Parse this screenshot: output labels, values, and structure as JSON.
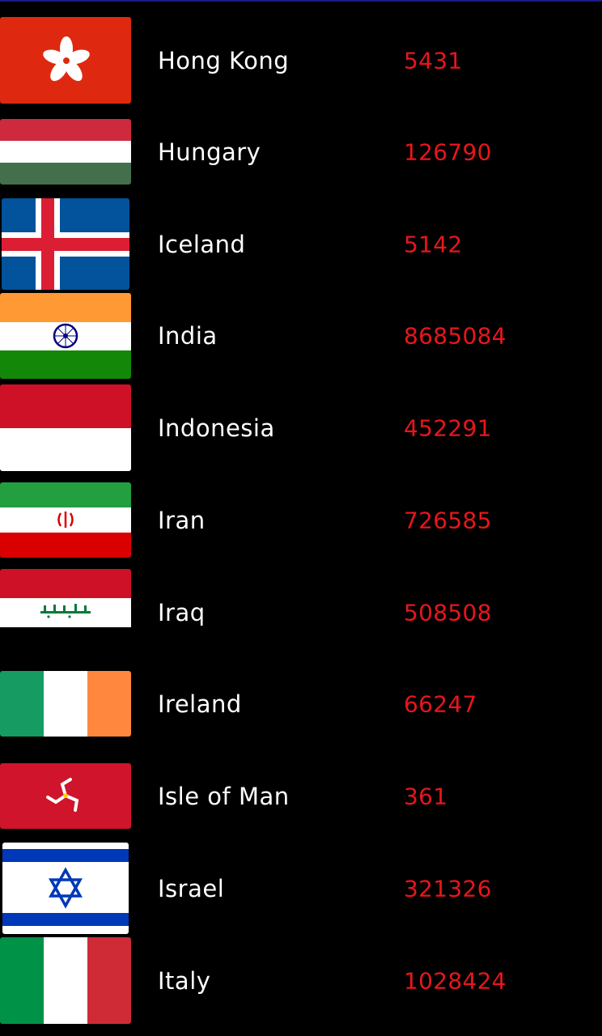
{
  "countries": [
    {
      "name": "Hong Kong",
      "count": "5431",
      "flag_icon": "hong-kong-flag-icon"
    },
    {
      "name": "Hungary",
      "count": "126790",
      "flag_icon": "hungary-flag-icon"
    },
    {
      "name": "Iceland",
      "count": "5142",
      "flag_icon": "iceland-flag-icon"
    },
    {
      "name": "India",
      "count": "8685084",
      "flag_icon": "india-flag-icon"
    },
    {
      "name": "Indonesia",
      "count": "452291",
      "flag_icon": "indonesia-flag-icon"
    },
    {
      "name": "Iran",
      "count": "726585",
      "flag_icon": "iran-flag-icon"
    },
    {
      "name": "Iraq",
      "count": "508508",
      "flag_icon": "iraq-flag-icon"
    },
    {
      "name": "Ireland",
      "count": "66247",
      "flag_icon": "ireland-flag-icon"
    },
    {
      "name": "Isle of Man",
      "count": "361",
      "flag_icon": "isle-of-man-flag-icon"
    },
    {
      "name": "Israel",
      "count": "321326",
      "flag_icon": "israel-flag-icon"
    },
    {
      "name": "Italy",
      "count": "1028424",
      "flag_icon": "italy-flag-icon"
    }
  ],
  "colors": {
    "background": "#000000",
    "name_text": "#ffffff",
    "count_text": "#e8161b"
  }
}
